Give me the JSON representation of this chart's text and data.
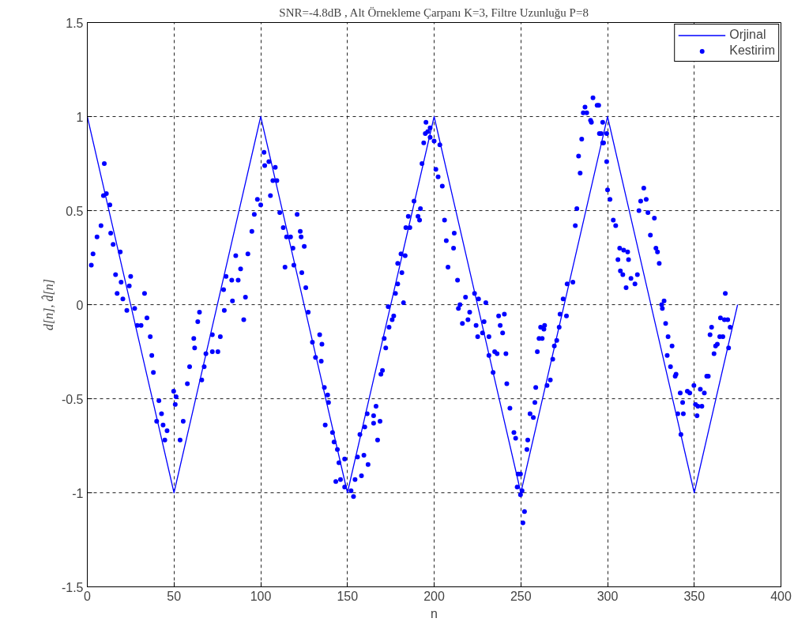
{
  "chart_data": {
    "type": "scatter",
    "title": "SNR=-4.8dB , Alt Örnekleme Çarpanı K=3, Filtre Uzunluğu P=8",
    "xlabel": "n",
    "ylabel": "d[n], d̂[n]",
    "xlim": [
      0,
      400
    ],
    "ylim": [
      -1.5,
      1.5
    ],
    "xticks": [
      0,
      50,
      100,
      150,
      200,
      250,
      300,
      350,
      400
    ],
    "yticks": [
      -1.5,
      -1,
      -0.5,
      0,
      0.5,
      1,
      1.5
    ],
    "grid": true,
    "legend": "top right",
    "series": [
      {
        "name": "Orjinal",
        "type": "line",
        "color": "#0000ff",
        "line_style": "solid",
        "marker": "none",
        "x": [
          0,
          50,
          100,
          150,
          200,
          250,
          300,
          350,
          375
        ],
        "values": [
          1,
          -1,
          1,
          -1,
          1,
          -1,
          1,
          -1,
          0
        ]
      },
      {
        "name": "Kestirim",
        "color": "#0000ff",
        "marker": "circle",
        "x": [
          2.3,
          3.3,
          5.6,
          7.9,
          9.8,
          9.3,
          11,
          13,
          13.5,
          14.9,
          19,
          16.3,
          19.5,
          17.2,
          20.5,
          22.8,
          25,
          24.2,
          27.3,
          33,
          28.8,
          31,
          34.4,
          36.3,
          37.2,
          38.1,
          41.3,
          40,
          42.8,
          43.7,
          46,
          44.7,
          49.8,
          50.7,
          51.2,
          53.5,
          55.3,
          57.7,
          59,
          61.9,
          61.4,
          63.7,
          64.7,
          66,
          67.4,
          68.4,
          72.1,
          72.1,
          75.3,
          76.7,
          79,
          78.6,
          80,
          83.3,
          83.7,
          85.6,
          88.4,
          87,
          90.2,
          91.2,
          92.6,
          94.9,
          96.3,
          98.1,
          100,
          101.9,
          102.3,
          104.7,
          108.4,
          107,
          109.3,
          105.6,
          111,
          113,
          114.9,
          117.2,
          118.6,
          114,
          119.1,
          121,
          122.8,
          123.3,
          125.1,
          123.7,
          126,
          127.4,
          129.8,
          134,
          135.3,
          131.6,
          134.9,
          136.7,
          138.6,
          139.1,
          137.2,
          141.4,
          142.3,
          144.2,
          145.1,
          148.4,
          143.3,
          146,
          148.4,
          152.1,
          153.5,
          154.4,
          158.1,
          155.8,
          159.5,
          161.9,
          157.2,
          160,
          161.4,
          165.1,
          165.1,
          166.5,
          168.8,
          167.4,
          169.3,
          170.2,
          172.1,
          171.2,
          174,
          175.8,
          176.7,
          173.5,
          177.7,
          179,
          182.3,
          181.4,
          179,
          180.9,
          183.3,
          183.7,
          186,
          185.1,
          190.7,
          191.6,
          188.4,
          192.1,
          193,
          194,
          194.9,
          196.3,
          195.3,
          197.7,
          197.7,
          200,
          203.3,
          201,
          202.3,
          204.7,
          206,
          211.6,
          207,
          211.2,
          208,
          213.5,
          218.1,
          214.9,
          214,
          223.3,
          225.6,
          229.8,
          220.5,
          216.3,
          219.5,
          224.2,
          228.8,
          225.1,
          231.6,
          227.9,
          237.2,
          240.5,
          238.1,
          239.5,
          231.6,
          234.9,
          236.3,
          241.4,
          234,
          241.9,
          243.7,
          246,
          247,
          248.4,
          249.8,
          247.9,
          249.8,
          250.7,
          252.1,
          251.2,
          253.5,
          254,
          255.3,
          257.2,
          258.1,
          258.6,
          259.5,
          260.5,
          262.3,
          261.4,
          263.7,
          263.3,
          265.1,
          267,
          268.4,
          269.3,
          270.7,
          272.1,
          272.6,
          276.3,
          274.4,
          276.7,
          280,
          281.4,
          282.3,
          284.2,
          283.3,
          285.1,
          286,
          287,
          288,
          290.2,
          290.7,
          291.6,
          294,
          295.3,
          297.2,
          294.9,
          297.2,
          296.3,
          299.5,
          297.7,
          299.5,
          300,
          301.4,
          303.3,
          304.7,
          307,
          309.3,
          311.6,
          306,
          312.1,
          307.4,
          308.8,
          310.7,
          313.5,
          315.8,
          317.2,
          318.1,
          319.1,
          320.9,
          322.3,
          323.3,
          327,
          324.7,
          327.9,
          328.8,
          329.8,
          331.2,
          332.6,
          331.6,
          333.5,
          334.9,
          337.2,
          334.4,
          336.3,
          339.5,
          339,
          341.9,
          340.5,
          343.7,
          343.3,
          342.3,
          346,
          347.4,
          349.8,
          350.7,
          352.1,
          351.6,
          354.4,
          353.5,
          355.8,
          357.2,
          358.1,
          361.4,
          362.3,
          363.3,
          359.1,
          360,
          364.7,
          366.5,
          365.1,
          367.4,
          369.3,
          367.9,
          370.7,
          369.8
        ],
        "values": [
          0.21,
          0.27,
          0.36,
          0.42,
          0.75,
          0.58,
          0.59,
          0.53,
          0.38,
          0.32,
          0.28,
          0.16,
          0.12,
          0.06,
          0.03,
          -0.03,
          0.15,
          0.1,
          -0.02,
          0.06,
          -0.11,
          -0.11,
          -0.07,
          -0.17,
          -0.27,
          -0.36,
          -0.51,
          -0.62,
          -0.58,
          -0.64,
          -0.67,
          -0.72,
          -0.46,
          -0.53,
          -0.49,
          -0.72,
          -0.62,
          -0.42,
          -0.33,
          -0.23,
          -0.18,
          -0.09,
          -0.04,
          -0.4,
          -0.33,
          -0.26,
          -0.16,
          -0.25,
          -0.25,
          -0.17,
          -0.03,
          0.08,
          0.15,
          0.13,
          0.02,
          0.26,
          0.19,
          0.13,
          -0.08,
          0.04,
          0.27,
          0.39,
          0.48,
          0.56,
          0.53,
          0.81,
          0.74,
          0.76,
          0.73,
          0.66,
          0.66,
          0.58,
          0.49,
          0.41,
          0.36,
          0.36,
          0.3,
          0.2,
          0.21,
          0.48,
          0.39,
          0.36,
          0.31,
          0.17,
          0.09,
          -0.04,
          -0.2,
          -0.16,
          -0.21,
          -0.28,
          -0.3,
          -0.44,
          -0.48,
          -0.52,
          -0.64,
          -0.68,
          -0.73,
          -0.77,
          -0.84,
          -0.82,
          -0.94,
          -0.93,
          -0.97,
          -0.99,
          -1.02,
          -0.93,
          -0.91,
          -0.81,
          -0.8,
          -0.85,
          -0.69,
          -0.65,
          -0.58,
          -0.59,
          -0.63,
          -0.54,
          -0.62,
          -0.72,
          -0.37,
          -0.35,
          -0.23,
          -0.18,
          -0.12,
          -0.08,
          -0.06,
          -0.01,
          0.06,
          0.11,
          0.01,
          0.17,
          0.22,
          0.27,
          0.26,
          0.41,
          0.41,
          0.47,
          0.47,
          0.45,
          0.55,
          0.51,
          0.75,
          0.86,
          0.91,
          0.92,
          0.97,
          0.89,
          0.94,
          0.87,
          0.85,
          0.72,
          0.68,
          0.63,
          0.45,
          0.38,
          0.34,
          0.3,
          0.2,
          0.13,
          0.04,
          0.0,
          -0.02,
          0.06,
          0.03,
          0.01,
          -0.04,
          -0.1,
          -0.08,
          -0.11,
          -0.09,
          -0.17,
          -0.17,
          -0.15,
          -0.06,
          -0.05,
          -0.11,
          -0.15,
          -0.27,
          -0.25,
          -0.26,
          -0.26,
          -0.36,
          -0.42,
          -0.55,
          -0.68,
          -0.71,
          -0.9,
          -0.9,
          -0.97,
          -1.01,
          -0.99,
          -1.1,
          -1.16,
          -0.77,
          -0.72,
          -0.58,
          -0.6,
          -0.52,
          -0.44,
          -0.25,
          -0.18,
          -0.18,
          -0.12,
          -0.11,
          -0.13,
          -0.43,
          -0.4,
          -0.29,
          -0.22,
          -0.19,
          -0.12,
          -0.05,
          -0.06,
          0.03,
          0.11,
          0.12,
          0.42,
          0.51,
          0.7,
          0.79,
          0.88,
          1.02,
          1.05,
          1.02,
          0.98,
          0.97,
          1.1,
          1.06,
          0.91,
          0.86,
          1.06,
          0.97,
          0.91,
          0.91,
          0.86,
          0.76,
          0.61,
          0.56,
          0.45,
          0.42,
          0.3,
          0.29,
          0.28,
          0.24,
          0.24,
          0.18,
          0.16,
          0.09,
          0.14,
          0.11,
          0.16,
          0.5,
          0.55,
          0.62,
          0.56,
          0.49,
          0.46,
          0.37,
          0.3,
          0.28,
          0.22,
          0.0,
          0.02,
          -0.02,
          -0.1,
          -0.17,
          -0.22,
          -0.27,
          -0.33,
          -0.37,
          -0.38,
          -0.47,
          -0.58,
          -0.58,
          -0.52,
          -0.69,
          -0.46,
          -0.47,
          -0.43,
          -0.53,
          -0.54,
          -0.59,
          -0.54,
          -0.45,
          -0.47,
          -0.38,
          -0.38,
          -0.26,
          -0.22,
          -0.21,
          -0.16,
          -0.12,
          -0.17,
          -0.17,
          -0.07,
          -0.08,
          -0.08,
          0.06,
          -0.12,
          -0.23
        ]
      }
    ]
  }
}
